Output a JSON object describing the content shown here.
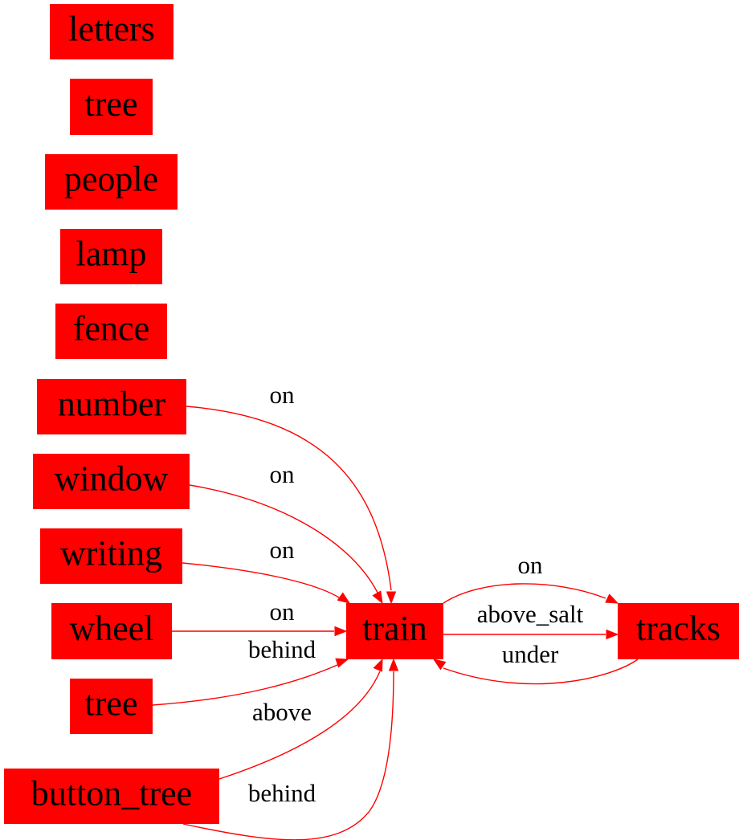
{
  "nodes": [
    {
      "id": "letters",
      "label": "letters"
    },
    {
      "id": "tree1",
      "label": "tree"
    },
    {
      "id": "people",
      "label": "people"
    },
    {
      "id": "lamp",
      "label": "lamp"
    },
    {
      "id": "fence",
      "label": "fence"
    },
    {
      "id": "number",
      "label": "number"
    },
    {
      "id": "window",
      "label": "window"
    },
    {
      "id": "writing",
      "label": "writing"
    },
    {
      "id": "wheel",
      "label": "wheel"
    },
    {
      "id": "tree2",
      "label": "tree"
    },
    {
      "id": "button_tree",
      "label": "button_tree"
    },
    {
      "id": "train",
      "label": "train"
    },
    {
      "id": "tracks",
      "label": "tracks"
    }
  ],
  "edges": [
    {
      "id": "number-train",
      "from": "number",
      "to": "train",
      "label": "on"
    },
    {
      "id": "window-train",
      "from": "window",
      "to": "train",
      "label": "on"
    },
    {
      "id": "writing-train",
      "from": "writing",
      "to": "train",
      "label": "on"
    },
    {
      "id": "wheel-train",
      "from": "wheel",
      "to": "train",
      "label": "on"
    },
    {
      "id": "tree2-train",
      "from": "tree2",
      "to": "train",
      "label": "behind"
    },
    {
      "id": "button_tree-train-above",
      "from": "button_tree",
      "to": "train",
      "label": "above"
    },
    {
      "id": "button_tree-train-behind",
      "from": "button_tree",
      "to": "train",
      "label": "behind"
    },
    {
      "id": "train-tracks-on",
      "from": "train",
      "to": "tracks",
      "label": "on"
    },
    {
      "id": "train-tracks-above_salt",
      "from": "train",
      "to": "tracks",
      "label": "above_salt"
    },
    {
      "id": "tracks-train-under",
      "from": "tracks",
      "to": "train",
      "label": "under"
    }
  ],
  "colors": {
    "node_fill": "#ff0000",
    "edge": "#ff0000",
    "text": "#000000",
    "background": "#ffffff"
  }
}
